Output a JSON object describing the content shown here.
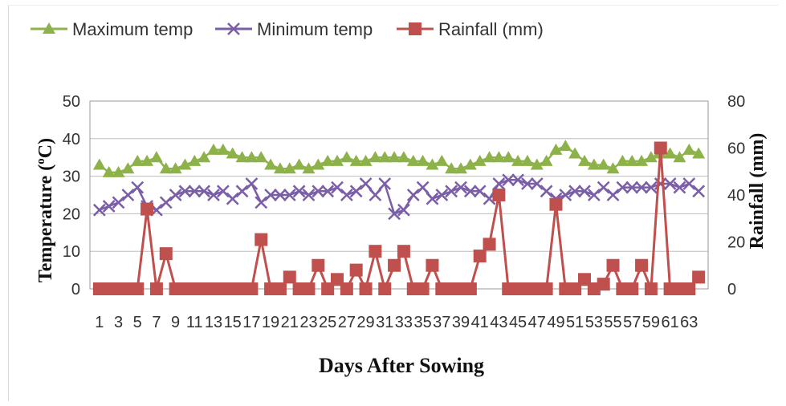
{
  "chart_data": {
    "type": "line",
    "title": "",
    "xlabel": "Days After Sowing",
    "ylabel": "Temperature (°C)",
    "ylabel_parts": {
      "pre": "Temperature (",
      "sup": "o",
      "post": "C)"
    },
    "y2label": "Rainfall (mm)",
    "ylim": [
      0,
      50
    ],
    "y_ticks": [
      "0",
      "10",
      "20",
      "30",
      "40",
      "50"
    ],
    "y2lim": [
      0,
      80
    ],
    "y2_ticks": [
      "0",
      "20",
      "40",
      "60",
      "80"
    ],
    "x_tick_labels": [
      "1",
      "3",
      "5",
      "7",
      "9",
      "11",
      "13",
      "15",
      "17",
      "19",
      "21",
      "23",
      "25",
      "27",
      "29",
      "31",
      "33",
      "35",
      "37",
      "39",
      "41",
      "43",
      "45",
      "47",
      "49",
      "51",
      "53",
      "55",
      "57",
      "59",
      "61",
      "63"
    ],
    "grid": true,
    "legend_position": "top-left",
    "x": [
      1,
      2,
      3,
      4,
      5,
      6,
      7,
      8,
      9,
      10,
      11,
      12,
      13,
      14,
      15,
      16,
      17,
      18,
      19,
      20,
      21,
      22,
      23,
      24,
      25,
      26,
      27,
      28,
      29,
      30,
      31,
      32,
      33,
      34,
      35,
      36,
      37,
      38,
      39,
      40,
      41,
      42,
      43,
      44,
      45,
      46,
      47,
      48,
      49,
      50,
      51,
      52,
      53,
      54,
      55,
      56,
      57,
      58,
      59,
      60,
      61,
      62,
      63,
      64
    ],
    "series": [
      {
        "name": "Maximum temp",
        "axis": "left",
        "color": "#8db24a",
        "marker": "triangle",
        "values": [
          33,
          31,
          31,
          32,
          34,
          34,
          35,
          32,
          32,
          33,
          34,
          35,
          37,
          37,
          36,
          35,
          35,
          35,
          33,
          32,
          32,
          33,
          32,
          33,
          34,
          34,
          35,
          34,
          34,
          35,
          35,
          35,
          35,
          34,
          34,
          33,
          34,
          32,
          32,
          33,
          34,
          35,
          35,
          35,
          34,
          34,
          33,
          34,
          37,
          38,
          36,
          34,
          33,
          33,
          32,
          34,
          34,
          34,
          35,
          36,
          36,
          35,
          37,
          36
        ]
      },
      {
        "name": "Minimum temp",
        "axis": "left",
        "color": "#7a5ea8",
        "marker": "x",
        "values": [
          21,
          22,
          23,
          25,
          27,
          22,
          21,
          23,
          25,
          26,
          26,
          26,
          25,
          26,
          24,
          26,
          28,
          23,
          25,
          25,
          25,
          26,
          25,
          26,
          26,
          27,
          25,
          26,
          28,
          25,
          28,
          20,
          21,
          25,
          27,
          24,
          25,
          26,
          27,
          26,
          26,
          24,
          28,
          29,
          29,
          28,
          28,
          26,
          24,
          25,
          26,
          26,
          25,
          27,
          25,
          27,
          27,
          27,
          27,
          28,
          28,
          27,
          28,
          26
        ]
      },
      {
        "name": "Rainfall (mm)",
        "axis": "right",
        "color": "#c0504d",
        "marker": "square",
        "values": [
          0,
          0,
          0,
          0,
          0,
          34,
          0,
          15,
          0,
          0,
          0,
          0,
          0,
          0,
          0,
          0,
          0,
          21,
          0,
          0,
          5,
          0,
          0,
          10,
          0,
          4,
          0,
          8,
          0,
          16,
          0,
          10,
          16,
          0,
          0,
          10,
          0,
          0,
          0,
          0,
          14,
          19,
          40,
          0,
          0,
          0,
          0,
          0,
          36,
          0,
          0,
          4,
          0,
          2,
          10,
          0,
          0,
          10,
          0,
          60,
          0,
          0,
          0,
          5
        ]
      }
    ]
  }
}
